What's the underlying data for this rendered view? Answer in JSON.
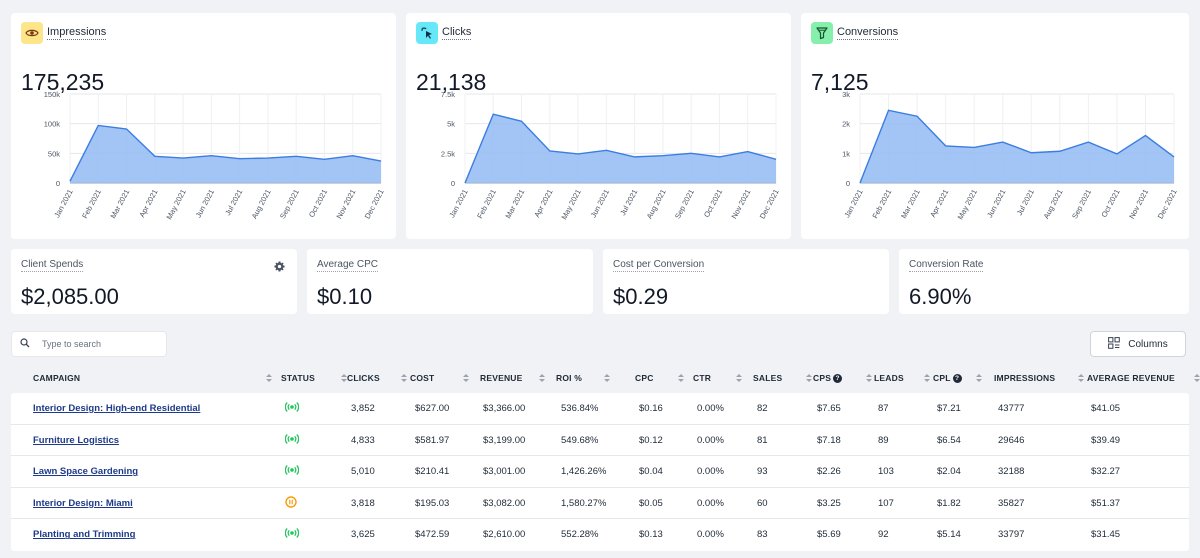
{
  "kpis": [
    {
      "id": "impressions",
      "label": "Impressions",
      "value": "175,235",
      "icon": "eye-icon",
      "icon_bg": "#fde68a",
      "icon_color": "#78350f",
      "chart_data": {
        "type": "area",
        "categories": [
          "Jan 2021",
          "Feb 2021",
          "Mar 2021",
          "Apr 2021",
          "May 2021",
          "Jun 2021",
          "Jul 2021",
          "Aug 2021",
          "Sep 2021",
          "Oct 2021",
          "Nov 2021",
          "Dec 2021"
        ],
        "values": [
          3000,
          97000,
          91000,
          45000,
          42000,
          46000,
          41000,
          42000,
          45000,
          40000,
          46000,
          37000
        ],
        "yticks": [
          "0",
          "50k",
          "100k",
          "150k"
        ],
        "ylim": [
          0,
          150000
        ]
      }
    },
    {
      "id": "clicks",
      "label": "Clicks",
      "value": "21,138",
      "icon": "cursor-click-icon",
      "icon_bg": "#67e8f9",
      "icon_color": "#083344",
      "chart_data": {
        "type": "area",
        "categories": [
          "Jan 2021",
          "Feb 2021",
          "Mar 2021",
          "Apr 2021",
          "May 2021",
          "Jun 2021",
          "Jul 2021",
          "Aug 2021",
          "Sep 2021",
          "Oct 2021",
          "Nov 2021",
          "Dec 2021"
        ],
        "values": [
          0,
          5800,
          5200,
          2700,
          2450,
          2750,
          2200,
          2300,
          2500,
          2200,
          2650,
          2000
        ],
        "yticks": [
          "0",
          "2.5k",
          "5k",
          "7.5k"
        ],
        "ylim": [
          0,
          7500
        ]
      }
    },
    {
      "id": "conversions",
      "label": "Conversions",
      "value": "7,125",
      "icon": "funnel-icon",
      "icon_bg": "#86efac",
      "icon_color": "#14532d",
      "chart_data": {
        "type": "area",
        "categories": [
          "Jan 2021",
          "Feb 2021",
          "Mar 2021",
          "Apr 2021",
          "May 2021",
          "Jun 2021",
          "Jul 2021",
          "Aug 2021",
          "Sep 2021",
          "Oct 2021",
          "Nov 2021",
          "Dec 2021"
        ],
        "values": [
          0,
          2450,
          2250,
          1250,
          1200,
          1380,
          1020,
          1070,
          1380,
          980,
          1600,
          880
        ],
        "yticks": [
          "0",
          "1k",
          "2k",
          "3k"
        ],
        "ylim": [
          0,
          3000
        ]
      }
    }
  ],
  "stats": [
    {
      "id": "client-spends",
      "label": "Client Spends",
      "value": "$2,085.00",
      "has_settings": true
    },
    {
      "id": "average-cpc",
      "label": "Average CPC",
      "value": "$0.10"
    },
    {
      "id": "cost-per-conversion",
      "label": "Cost per Conversion",
      "value": "$0.29"
    },
    {
      "id": "conversion-rate",
      "label": "Conversion Rate",
      "value": "6.90%"
    }
  ],
  "search": {
    "placeholder": "Type to search",
    "value": ""
  },
  "columns_button": "Columns",
  "table": {
    "headers": [
      {
        "key": "campaign",
        "label": "CAMPAIGN"
      },
      {
        "key": "status",
        "label": "STATUS"
      },
      {
        "key": "clicks",
        "label": "CLICKS"
      },
      {
        "key": "cost",
        "label": "COST"
      },
      {
        "key": "revenue",
        "label": "REVENUE"
      },
      {
        "key": "roi",
        "label": "ROI %"
      },
      {
        "key": "cpc",
        "label": "CPC"
      },
      {
        "key": "ctr",
        "label": "CTR"
      },
      {
        "key": "sales",
        "label": "SALES"
      },
      {
        "key": "cps",
        "label": "CPS",
        "help": true
      },
      {
        "key": "leads",
        "label": "LEADS"
      },
      {
        "key": "cpl",
        "label": "CPL",
        "help": true
      },
      {
        "key": "impressions",
        "label": "IMPRESSIONS"
      },
      {
        "key": "avg_revenue",
        "label": "AVERAGE REVENUE"
      }
    ],
    "rows": [
      {
        "campaign": "Interior Design: High-end Residential",
        "status": "active",
        "clicks": "3,852",
        "cost": "$627.00",
        "revenue": "$3,366.00",
        "roi": "536.84%",
        "cpc": "$0.16",
        "ctr": "0.00%",
        "sales": "82",
        "cps": "$7.65",
        "leads": "87",
        "cpl": "$7.21",
        "impressions": "43777",
        "avg_revenue": "$41.05"
      },
      {
        "campaign": "Furniture Logistics",
        "status": "active",
        "clicks": "4,833",
        "cost": "$581.97",
        "revenue": "$3,199.00",
        "roi": "549.68%",
        "cpc": "$0.12",
        "ctr": "0.00%",
        "sales": "81",
        "cps": "$7.18",
        "leads": "89",
        "cpl": "$6.54",
        "impressions": "29646",
        "avg_revenue": "$39.49"
      },
      {
        "campaign": "Lawn Space Gardening",
        "status": "active",
        "clicks": "5,010",
        "cost": "$210.41",
        "revenue": "$3,001.00",
        "roi": "1,426.26%",
        "cpc": "$0.04",
        "ctr": "0.00%",
        "sales": "93",
        "cps": "$2.26",
        "leads": "103",
        "cpl": "$2.04",
        "impressions": "32188",
        "avg_revenue": "$32.27"
      },
      {
        "campaign": "Interior Design: Miami",
        "status": "paused",
        "clicks": "3,818",
        "cost": "$195.03",
        "revenue": "$3,082.00",
        "roi": "1,580.27%",
        "cpc": "$0.05",
        "ctr": "0.00%",
        "sales": "60",
        "cps": "$3.25",
        "leads": "107",
        "cpl": "$1.82",
        "impressions": "35827",
        "avg_revenue": "$51.37"
      },
      {
        "campaign": "Planting and Trimming",
        "status": "active",
        "clicks": "3,625",
        "cost": "$472.59",
        "revenue": "$2,610.00",
        "roi": "552.28%",
        "cpc": "$0.13",
        "ctr": "0.00%",
        "sales": "83",
        "cps": "$5.69",
        "leads": "92",
        "cpl": "$5.14",
        "impressions": "33797",
        "avg_revenue": "$31.45"
      }
    ]
  },
  "colors": {
    "active": "#22c55e",
    "paused": "#f59e0b",
    "area_fill": "#93bbf3",
    "area_line": "#3b7de0"
  }
}
